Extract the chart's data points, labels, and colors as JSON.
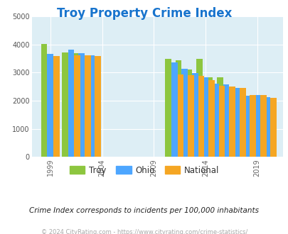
{
  "title": "Troy Property Crime Index",
  "title_color": "#1874CD",
  "subtitle": "Crime Index corresponds to incidents per 100,000 inhabitants",
  "footer": "© 2024 CityRating.com - https://www.cityrating.com/crime-statistics/",
  "years": [
    1999,
    2001,
    2002,
    2003,
    2011,
    2012,
    2013,
    2014,
    2015,
    2016,
    2017,
    2018,
    2019,
    2020
  ],
  "troy": [
    4030,
    3720,
    3680,
    3610,
    3490,
    3440,
    3120,
    3480,
    2840,
    2820,
    1960,
    2080,
    1650,
    2100
  ],
  "ohio": [
    3660,
    3820,
    3680,
    3620,
    3360,
    3130,
    2980,
    2820,
    2610,
    2580,
    2440,
    2170,
    2200,
    2130
  ],
  "national": [
    3600,
    3620,
    3620,
    3580,
    2940,
    2900,
    2870,
    2740,
    2540,
    2500,
    2440,
    2200,
    2190,
    2110
  ],
  "troy_color": "#8dc63f",
  "ohio_color": "#4da6ff",
  "national_color": "#f5a623",
  "bg_color": "#ddeef5",
  "ylim": [
    0,
    5000
  ],
  "yticks": [
    0,
    1000,
    2000,
    3000,
    4000,
    5000
  ],
  "xticks_labels": [
    "1999",
    "2004",
    "2009",
    "2014",
    "2019"
  ],
  "xticks_positions": [
    1999,
    2004,
    2009,
    2014,
    2019
  ],
  "bar_width": 0.6,
  "legend_labels": [
    "Troy",
    "Ohio",
    "National"
  ],
  "legend_colors": [
    "#8dc63f",
    "#4da6ff",
    "#f5a623"
  ]
}
